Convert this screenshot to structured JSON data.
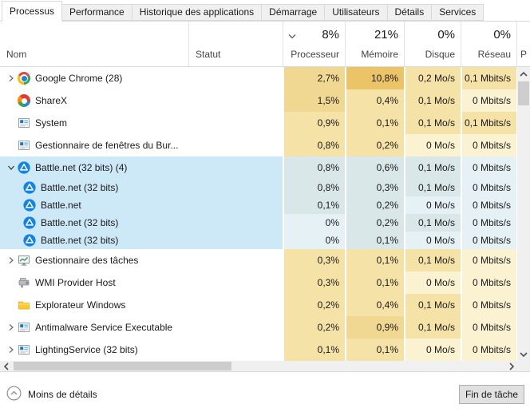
{
  "tabs": {
    "items": [
      {
        "label": "Processus",
        "active": true
      },
      {
        "label": "Performance",
        "active": false
      },
      {
        "label": "Historique des applications",
        "active": false
      },
      {
        "label": "Démarrage",
        "active": false
      },
      {
        "label": "Utilisateurs",
        "active": false
      },
      {
        "label": "Détails",
        "active": false
      },
      {
        "label": "Services",
        "active": false
      }
    ]
  },
  "header": {
    "name_label": "Nom",
    "status_label": "Statut",
    "usage_columns": [
      {
        "percent": "8%",
        "label": "Processeur",
        "sort_indicator": true
      },
      {
        "percent": "21%",
        "label": "Mémoire",
        "sort_indicator": false
      },
      {
        "percent": "0%",
        "label": "Disque",
        "sort_indicator": false
      },
      {
        "percent": "0%",
        "label": "Réseau",
        "sort_indicator": false
      }
    ],
    "partial_column_label": "P"
  },
  "processes": [
    {
      "name": "Google Chrome (28)",
      "icon": "chrome-icon",
      "expander": "collapsed",
      "child": false,
      "selected": false,
      "status": "",
      "values": [
        "2,7%",
        "10,8%",
        "0,2 Mo/s",
        "0,1 Mbits/s"
      ],
      "levels": [
        2,
        3,
        1,
        1
      ]
    },
    {
      "name": "ShareX",
      "icon": "sharex-icon",
      "expander": "none",
      "child": false,
      "selected": false,
      "status": "",
      "values": [
        "1,5%",
        "0,4%",
        "0,1 Mo/s",
        "0 Mbits/s"
      ],
      "levels": [
        2,
        1,
        1,
        0
      ]
    },
    {
      "name": "System",
      "icon": "window-exe-icon",
      "expander": "none",
      "child": false,
      "selected": false,
      "status": "",
      "values": [
        "0,9%",
        "0,1%",
        "0,1 Mo/s",
        "0,1 Mbits/s"
      ],
      "levels": [
        1,
        1,
        1,
        1
      ]
    },
    {
      "name": "Gestionnaire de fenêtres du Bur...",
      "icon": "window-exe-icon",
      "expander": "none",
      "child": false,
      "selected": false,
      "status": "",
      "values": [
        "0,8%",
        "0,2%",
        "0 Mo/s",
        "0 Mbits/s"
      ],
      "levels": [
        1,
        1,
        0,
        0
      ]
    },
    {
      "name": "Battle.net (32 bits) (4)",
      "icon": "battlenet-icon",
      "expander": "expanded",
      "child": false,
      "selected": true,
      "status": "",
      "values": [
        "0,8%",
        "0,6%",
        "0,1 Mo/s",
        "0 Mbits/s"
      ],
      "levels": [
        1,
        1,
        1,
        0
      ]
    },
    {
      "name": "Battle.net (32 bits)",
      "icon": "battlenet-icon",
      "expander": "none",
      "child": true,
      "selected": true,
      "status": "",
      "values": [
        "0,8%",
        "0,3%",
        "0,1 Mo/s",
        "0 Mbits/s"
      ],
      "levels": [
        1,
        1,
        1,
        0
      ]
    },
    {
      "name": "Battle.net",
      "icon": "battlenet-icon",
      "expander": "none",
      "child": true,
      "selected": true,
      "status": "",
      "values": [
        "0,1%",
        "0,2%",
        "0 Mo/s",
        "0 Mbits/s"
      ],
      "levels": [
        1,
        1,
        0,
        0
      ]
    },
    {
      "name": "Battle.net (32 bits)",
      "icon": "battlenet-icon",
      "expander": "none",
      "child": true,
      "selected": true,
      "status": "",
      "values": [
        "0%",
        "0,2%",
        "0,1 Mo/s",
        "0 Mbits/s"
      ],
      "levels": [
        0,
        1,
        1,
        0
      ]
    },
    {
      "name": "Battle.net (32 bits)",
      "icon": "battlenet-icon",
      "expander": "none",
      "child": true,
      "selected": true,
      "status": "",
      "values": [
        "0%",
        "0,1%",
        "0 Mo/s",
        "0 Mbits/s"
      ],
      "levels": [
        0,
        1,
        0,
        0
      ]
    },
    {
      "name": "Gestionnaire des tâches",
      "icon": "task-manager-icon",
      "expander": "collapsed",
      "child": false,
      "selected": false,
      "status": "",
      "values": [
        "0,3%",
        "0,1%",
        "0,1 Mo/s",
        "0 Mbits/s"
      ],
      "levels": [
        1,
        1,
        1,
        0
      ]
    },
    {
      "name": "WMI Provider Host",
      "icon": "wmi-tool-icon",
      "expander": "none",
      "child": false,
      "selected": false,
      "status": "",
      "values": [
        "0,3%",
        "0,1%",
        "0 Mo/s",
        "0 Mbits/s"
      ],
      "levels": [
        1,
        1,
        0,
        0
      ]
    },
    {
      "name": "Explorateur Windows",
      "icon": "folder-icon",
      "expander": "none",
      "child": false,
      "selected": false,
      "status": "",
      "values": [
        "0,2%",
        "0,4%",
        "0,1 Mo/s",
        "0 Mbits/s"
      ],
      "levels": [
        1,
        1,
        1,
        0
      ]
    },
    {
      "name": "Antimalware Service Executable",
      "icon": "window-exe-icon",
      "expander": "collapsed",
      "child": false,
      "selected": false,
      "status": "",
      "values": [
        "0,2%",
        "0,9%",
        "0,1 Mo/s",
        "0 Mbits/s"
      ],
      "levels": [
        1,
        2,
        1,
        0
      ]
    },
    {
      "name": "LightingService (32 bits)",
      "icon": "window-exe-icon",
      "expander": "collapsed",
      "child": false,
      "selected": false,
      "status": "",
      "values": [
        "0,1%",
        "0,1%",
        "0 Mo/s",
        "0 Mbits/s"
      ],
      "levels": [
        1,
        1,
        0,
        0
      ]
    }
  ],
  "footer": {
    "toggle_label": "Moins de détails",
    "end_task_label": "Fin de tâche"
  },
  "colors": {
    "heat_levels": [
      "#fbf2d1",
      "#f5e2a7",
      "#f1d892",
      "#ecc468"
    ],
    "selection_name_bg": "#cde8f6",
    "selection_cell": "#dae7e9",
    "selection_cell_zero": "#e5f1f4",
    "battlenet_blue": "#1283e6",
    "chrome_blue": "#2f7de1",
    "scrollbar_thumb": "#cdcdcd"
  }
}
